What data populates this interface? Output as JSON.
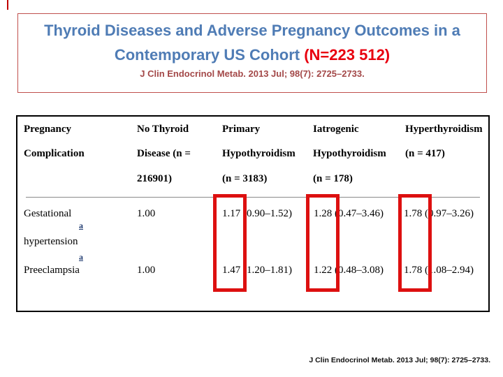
{
  "title": {
    "line1": "Thyroid Diseases and Adverse Pregnancy Outcomes in a",
    "line2_prefix": "Contemporary US Cohort ",
    "line2_n": "(N=223 512)",
    "citation": "J Clin Endocrinol Metab. 2013 Jul; 98(7): 2725–2733."
  },
  "table": {
    "headers": [
      {
        "line1": "Pregnancy",
        "line2": "Complication",
        "line3": ""
      },
      {
        "line1": "No Thyroid",
        "line2": "Disease (n =",
        "line3": "216901)"
      },
      {
        "line1": "Primary",
        "line2": "Hypothyroidism",
        "line3": "(n = 3183)"
      },
      {
        "line1": "Iatrogenic",
        "line2": "Hypothyroidism",
        "line3": "(n = 178)"
      },
      {
        "line1": "Hyperthyroidism",
        "line2": "(n = 417)",
        "line3": ""
      }
    ],
    "rows": [
      {
        "label_line1": "Gestational",
        "label_line2": "hypertension",
        "footnote_mark": "a",
        "values": [
          "1.00",
          "1.17 (0.90–1.52)",
          "1.28 (0.47–3.46)",
          "1.78 (0.97–3.26)"
        ]
      },
      {
        "label_line1": "Preeclampsia",
        "label_line2": "",
        "footnote_mark": "a",
        "values": [
          "1.00",
          "1.47 (1.20–1.81)",
          "1.22 (0.48–3.08)",
          "1.78 (1.08–2.94)"
        ]
      }
    ]
  },
  "footer": {
    "citation": "J Clin Endocrinol Metab. 2013 Jul; 98(7): 2725–2733."
  },
  "colors": {
    "title_blue": "#4f7cb5",
    "accent_red": "#e8000f",
    "dark_red": "#a34848",
    "title_box_border": "#c0504d",
    "highlight_border": "#dd1010",
    "footnote_navy": "#1f3a70"
  }
}
